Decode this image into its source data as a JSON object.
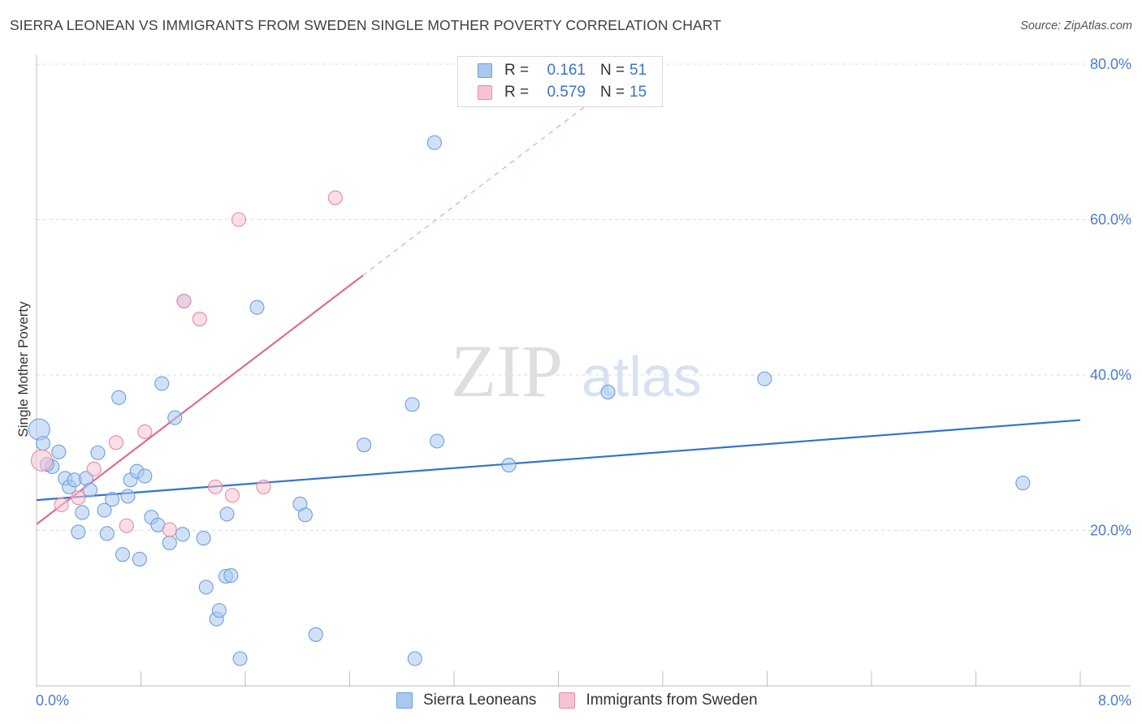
{
  "title": "SIERRA LEONEAN VS IMMIGRANTS FROM SWEDEN SINGLE MOTHER POVERTY CORRELATION CHART",
  "source": "Source: ZipAtlas.com",
  "watermark": {
    "zip": "ZIP",
    "atlas": "atlas"
  },
  "legend": {
    "rows": [
      {
        "r_label": "R =",
        "r_value": "0.161",
        "n_label": "N =",
        "n_value": "51",
        "color": "#a9c8f0",
        "border": "#6e9fde"
      },
      {
        "r_label": "R =",
        "r_value": "0.579",
        "n_label": "N =",
        "n_value": "15",
        "color": "#f7c3d2",
        "border": "#e68aa6"
      }
    ]
  },
  "bottom_legend": [
    {
      "label": "Sierra Leoneans",
      "color": "#a9c8f0",
      "border": "#6e9fde"
    },
    {
      "label": "Immigrants from Sweden",
      "color": "#f7c3d2",
      "border": "#e68aa6"
    }
  ],
  "chart_data": {
    "type": "scatter",
    "xlabel": "",
    "ylabel": "Single Mother Poverty",
    "xlim": [
      0,
      8
    ],
    "ylim": [
      0,
      80
    ],
    "x_tick_labels": [
      "0.0%",
      "8.0%"
    ],
    "y_ticks": [
      20,
      40,
      60,
      80
    ],
    "y_tick_labels": [
      "20.0%",
      "40.0%",
      "60.0%",
      "80.0%"
    ],
    "grid": true,
    "legend_position": "top-center",
    "series": [
      {
        "name": "Sierra Leoneans",
        "color": "#6e9fde",
        "fill": "#a9c8f0",
        "points": [
          [
            0.02,
            33.0
          ],
          [
            0.05,
            31.2
          ],
          [
            0.12,
            28.2
          ],
          [
            0.17,
            30.1
          ],
          [
            0.22,
            26.7
          ],
          [
            0.25,
            25.6
          ],
          [
            0.29,
            26.5
          ],
          [
            0.32,
            19.8
          ],
          [
            0.35,
            22.3
          ],
          [
            0.38,
            26.7
          ],
          [
            0.41,
            25.2
          ],
          [
            0.47,
            30.0
          ],
          [
            0.52,
            22.6
          ],
          [
            0.54,
            19.6
          ],
          [
            0.58,
            24.0
          ],
          [
            0.63,
            37.1
          ],
          [
            0.66,
            16.9
          ],
          [
            0.7,
            24.4
          ],
          [
            0.72,
            26.5
          ],
          [
            0.77,
            27.6
          ],
          [
            0.79,
            16.3
          ],
          [
            0.83,
            27.0
          ],
          [
            0.88,
            21.7
          ],
          [
            0.93,
            20.7
          ],
          [
            0.96,
            38.9
          ],
          [
            1.02,
            18.4
          ],
          [
            1.06,
            34.5
          ],
          [
            1.12,
            19.5
          ],
          [
            1.13,
            49.5
          ],
          [
            1.28,
            19.0
          ],
          [
            1.3,
            12.7
          ],
          [
            1.38,
            8.6
          ],
          [
            1.4,
            9.7
          ],
          [
            1.45,
            14.1
          ],
          [
            1.46,
            22.1
          ],
          [
            1.49,
            14.2
          ],
          [
            1.56,
            3.5
          ],
          [
            1.69,
            48.7
          ],
          [
            2.02,
            23.4
          ],
          [
            2.06,
            22.0
          ],
          [
            2.14,
            6.6
          ],
          [
            2.51,
            31.0
          ],
          [
            2.88,
            36.2
          ],
          [
            2.9,
            3.5
          ],
          [
            3.05,
            69.9
          ],
          [
            3.07,
            31.5
          ],
          [
            3.62,
            28.4
          ],
          [
            4.38,
            37.8
          ],
          [
            5.58,
            39.5
          ],
          [
            7.56,
            26.1
          ],
          [
            0.08,
            28.5
          ]
        ]
      },
      {
        "name": "Immigrants from Sweden",
        "color": "#e68aa6",
        "fill": "#f7c3d2",
        "points": [
          [
            0.04,
            29.0
          ],
          [
            0.19,
            23.3
          ],
          [
            0.32,
            24.2
          ],
          [
            0.44,
            27.9
          ],
          [
            0.61,
            31.3
          ],
          [
            0.69,
            20.6
          ],
          [
            0.83,
            32.7
          ],
          [
            1.02,
            20.1
          ],
          [
            1.13,
            49.5
          ],
          [
            1.25,
            47.2
          ],
          [
            1.37,
            25.6
          ],
          [
            1.5,
            24.5
          ],
          [
            1.55,
            60.0
          ],
          [
            1.74,
            25.6
          ],
          [
            2.29,
            62.8
          ]
        ]
      }
    ],
    "trendlines": [
      {
        "series": "Sierra Leoneans",
        "color": "#2f74d0",
        "x": [
          0,
          8
        ],
        "y": [
          23.9,
          34.2
        ],
        "style": "solid"
      },
      {
        "series": "Immigrants from Sweden",
        "color": "#e06a93",
        "x": [
          0,
          2.5
        ],
        "y": [
          20.8,
          52.8
        ],
        "style": "solid"
      },
      {
        "series": "Immigrants from Sweden",
        "color": "#e8a0b8",
        "x": [
          2.5,
          4.2
        ],
        "y": [
          52.8,
          74.5
        ],
        "style": "dashed"
      }
    ]
  }
}
